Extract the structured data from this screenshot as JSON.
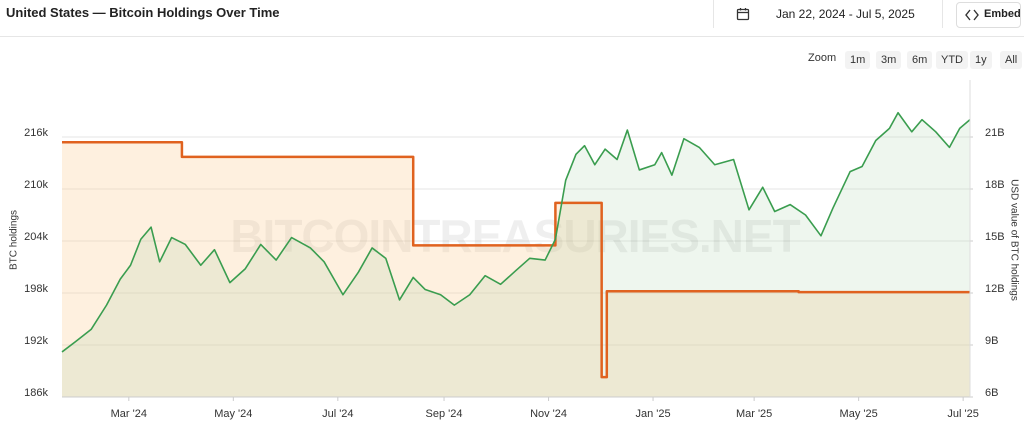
{
  "header": {
    "title": "United States — Bitcoin Holdings Over Time",
    "date_range": "Jan 22, 2024 - Jul 5, 2025",
    "embed": "Embed"
  },
  "zoom": {
    "label": "Zoom",
    "buttons": [
      "1m",
      "3m",
      "6m",
      "YTD",
      "1y",
      "All"
    ]
  },
  "chart_data": {
    "type": "line",
    "watermark": "BITCOINTREASURIES.NET",
    "ylabel": "BTC holdings",
    "y2label": "USD value of BTC holdings",
    "xlim": [
      "2024-01-22",
      "2025-07-05"
    ],
    "xticks": [
      {
        "value": "2024-03-01",
        "label": "Mar '24"
      },
      {
        "value": "2024-05-01",
        "label": "May '24"
      },
      {
        "value": "2024-07-01",
        "label": "Jul '24"
      },
      {
        "value": "2024-09-01",
        "label": "Sep '24"
      },
      {
        "value": "2024-11-01",
        "label": "Nov '24"
      },
      {
        "value": "2025-01-01",
        "label": "Jan '25"
      },
      {
        "value": "2025-03-01",
        "label": "Mar '25"
      },
      {
        "value": "2025-05-01",
        "label": "May '25"
      },
      {
        "value": "2025-07-01",
        "label": "Jul '25"
      }
    ],
    "ylim": [
      186000,
      222000
    ],
    "yticks": [
      {
        "value": 186000,
        "label": "186k"
      },
      {
        "value": 192000,
        "label": "192k"
      },
      {
        "value": 198000,
        "label": "198k"
      },
      {
        "value": 204000,
        "label": "204k"
      },
      {
        "value": 210000,
        "label": "210k"
      },
      {
        "value": 216000,
        "label": "216k"
      }
    ],
    "y2lim": [
      6000000000,
      24000000000
    ],
    "y2ticks": [
      {
        "value": 6000000000,
        "label": "6B"
      },
      {
        "value": 9000000000,
        "label": "9B"
      },
      {
        "value": 12000000000,
        "label": "12B"
      },
      {
        "value": 15000000000,
        "label": "15B"
      },
      {
        "value": 18000000000,
        "label": "18B"
      },
      {
        "value": 21000000000,
        "label": "21B"
      }
    ],
    "grid": true,
    "series": [
      {
        "color": "#e0621f",
        "fill": "rgba(250,200,140,0.28)",
        "step": "after",
        "x": [
          "2024-01-22",
          "2024-04-01",
          "2024-08-14",
          "2024-11-05",
          "2024-12-02",
          "2024-12-05",
          "2025-03-27",
          "2025-07-05"
        ],
        "values": [
          215400,
          213700,
          203500,
          208400,
          188300,
          198200,
          198100,
          198100
        ]
      },
      {
        "color": "#3a9d4f",
        "fill": "rgba(150,200,150,0.16)",
        "axis": "y2",
        "x": [
          "2024-01-22",
          "2024-01-30",
          "2024-02-08",
          "2024-02-17",
          "2024-02-25",
          "2024-03-02",
          "2024-03-08",
          "2024-03-14",
          "2024-03-19",
          "2024-03-26",
          "2024-04-03",
          "2024-04-12",
          "2024-04-20",
          "2024-04-29",
          "2024-05-08",
          "2024-05-17",
          "2024-05-26",
          "2024-06-04",
          "2024-06-15",
          "2024-06-23",
          "2024-07-04",
          "2024-07-13",
          "2024-07-21",
          "2024-07-29",
          "2024-08-06",
          "2024-08-14",
          "2024-08-21",
          "2024-08-30",
          "2024-09-07",
          "2024-09-16",
          "2024-09-25",
          "2024-10-04",
          "2024-10-13",
          "2024-10-21",
          "2024-10-30",
          "2024-11-05",
          "2024-11-11",
          "2024-11-17",
          "2024-11-22",
          "2024-11-28",
          "2024-12-04",
          "2024-12-11",
          "2024-12-17",
          "2024-12-24",
          "2025-01-02",
          "2025-01-06",
          "2025-01-12",
          "2025-01-19",
          "2025-01-28",
          "2025-02-06",
          "2025-02-17",
          "2025-02-26",
          "2025-03-06",
          "2025-03-13",
          "2025-03-22",
          "2025-03-31",
          "2025-04-09",
          "2025-04-16",
          "2025-04-26",
          "2025-05-03",
          "2025-05-11",
          "2025-05-19",
          "2025-05-24",
          "2025-06-01",
          "2025-06-07",
          "2025-06-15",
          "2025-06-23",
          "2025-06-29",
          "2025-07-05"
        ],
        "values": [
          8600000000,
          9200000000,
          9900000000,
          11300000000,
          12800000000,
          13600000000,
          15100000000,
          15800000000,
          13800000000,
          15200000000,
          14800000000,
          13600000000,
          14500000000,
          12600000000,
          13400000000,
          14800000000,
          13900000000,
          15200000000,
          14600000000,
          13800000000,
          11900000000,
          13200000000,
          14600000000,
          14000000000,
          11600000000,
          12900000000,
          12200000000,
          11900000000,
          11300000000,
          11900000000,
          13000000000,
          12500000000,
          13300000000,
          14000000000,
          13900000000,
          15100000000,
          18500000000,
          20000000000,
          20500000000,
          19400000000,
          20300000000,
          19700000000,
          21400000000,
          19100000000,
          19400000000,
          20100000000,
          18800000000,
          20900000000,
          20400000000,
          19400000000,
          19700000000,
          16800000000,
          18100000000,
          16700000000,
          17100000000,
          16500000000,
          15300000000,
          16900000000,
          19000000000,
          19300000000,
          20800000000,
          21500000000,
          22400000000,
          21300000000,
          22000000000,
          21300000000,
          20400000000,
          21500000000,
          22000000000
        ]
      }
    ]
  }
}
